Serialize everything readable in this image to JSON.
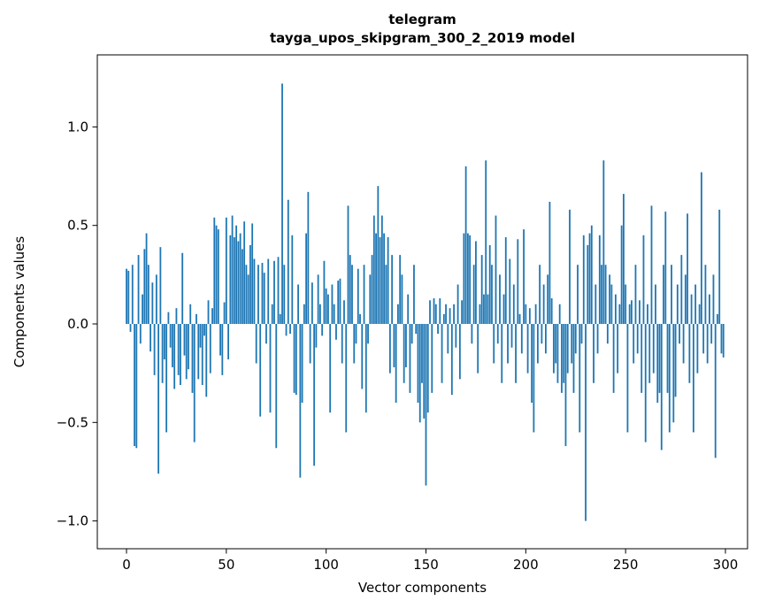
{
  "title": {
    "line1": "telegram",
    "line2": "tayga_upos_skipgram_300_2_2019 model"
  },
  "chart_data": {
    "type": "bar",
    "title": "telegram\ntayga_upos_skipgram_300_2_2019 model",
    "xlabel": "Vector components",
    "ylabel": "Components values",
    "bar_color": "#1f77b4",
    "xlim": [
      -15,
      312
    ],
    "ylim": [
      -1.14,
      1.36
    ],
    "grid": false,
    "legend": "none",
    "xticks": [
      0,
      50,
      100,
      150,
      200,
      250,
      300
    ],
    "xtick_labels": [
      "0",
      "50",
      "100",
      "150",
      "200",
      "250",
      "300"
    ],
    "yticks": [
      1.0,
      0.5,
      0.0,
      -0.5,
      -1.0
    ],
    "ytick_labels": [
      "1.0",
      "0.5",
      "0.0",
      "−0.5",
      "−1.0"
    ],
    "x_start_index": 0,
    "values": [
      0.28,
      0.27,
      -0.04,
      0.3,
      -0.62,
      -0.63,
      0.35,
      -0.1,
      0.15,
      0.38,
      0.46,
      0.3,
      -0.14,
      0.21,
      -0.26,
      0.25,
      -0.76,
      0.39,
      -0.3,
      -0.18,
      -0.55,
      0.06,
      -0.12,
      -0.22,
      -0.33,
      0.08,
      -0.26,
      -0.31,
      0.36,
      -0.16,
      -0.28,
      -0.23,
      0.1,
      -0.35,
      -0.6,
      0.05,
      -0.28,
      -0.12,
      -0.31,
      -0.06,
      -0.37,
      0.12,
      -0.25,
      0.08,
      0.54,
      0.5,
      0.48,
      -0.16,
      -0.26,
      0.11,
      0.54,
      -0.18,
      0.45,
      0.55,
      0.44,
      0.5,
      0.42,
      0.46,
      0.38,
      0.52,
      0.3,
      0.25,
      0.4,
      0.51,
      0.33,
      -0.2,
      0.3,
      -0.47,
      0.31,
      0.26,
      -0.1,
      0.33,
      -0.45,
      0.1,
      0.32,
      -0.63,
      0.34,
      0.05,
      1.22,
      0.3,
      -0.06,
      0.63,
      -0.05,
      0.45,
      -0.35,
      -0.36,
      0.2,
      -0.78,
      -0.4,
      0.1,
      0.46,
      0.67,
      -0.2,
      0.21,
      -0.72,
      -0.12,
      0.25,
      0.1,
      -0.06,
      0.32,
      0.18,
      0.15,
      -0.45,
      0.2,
      0.1,
      -0.08,
      0.22,
      0.23,
      -0.2,
      0.12,
      -0.55,
      0.6,
      0.35,
      0.3,
      -0.2,
      -0.1,
      0.28,
      0.05,
      -0.33,
      0.3,
      -0.45,
      -0.1,
      0.25,
      0.35,
      0.55,
      0.46,
      0.7,
      0.44,
      0.55,
      0.46,
      0.3,
      0.44,
      -0.25,
      0.35,
      -0.22,
      -0.4,
      0.1,
      0.35,
      0.25,
      -0.3,
      -0.22,
      0.15,
      -0.35,
      -0.1,
      0.3,
      -0.05,
      -0.4,
      -0.5,
      -0.3,
      -0.48,
      -0.82,
      -0.45,
      0.12,
      -0.35,
      0.13,
      0.1,
      -0.05,
      0.13,
      -0.3,
      0.05,
      0.1,
      -0.15,
      0.08,
      -0.36,
      0.1,
      -0.12,
      0.2,
      -0.28,
      0.12,
      0.46,
      0.8,
      0.46,
      0.45,
      -0.1,
      0.3,
      0.42,
      -0.25,
      0.1,
      0.35,
      0.15,
      0.83,
      0.15,
      0.4,
      0.3,
      -0.2,
      0.55,
      -0.1,
      0.25,
      -0.3,
      0.15,
      0.44,
      -0.2,
      0.33,
      -0.12,
      0.2,
      -0.3,
      0.43,
      0.05,
      -0.15,
      0.48,
      0.1,
      -0.25,
      0.08,
      -0.4,
      -0.55,
      0.1,
      -0.2,
      0.3,
      -0.1,
      0.2,
      -0.15,
      0.25,
      0.62,
      0.13,
      -0.25,
      -0.2,
      -0.3,
      0.1,
      -0.35,
      -0.3,
      -0.62,
      -0.25,
      0.58,
      -0.2,
      -0.35,
      -0.15,
      0.3,
      -0.55,
      -0.1,
      0.45,
      -1.0,
      0.4,
      0.46,
      0.5,
      -0.3,
      0.2,
      -0.15,
      0.45,
      0.3,
      0.83,
      0.3,
      -0.1,
      0.25,
      0.2,
      -0.35,
      0.15,
      -0.25,
      0.1,
      0.5,
      0.66,
      0.2,
      -0.55,
      0.1,
      0.12,
      -0.2,
      0.3,
      -0.15,
      0.12,
      -0.35,
      0.45,
      -0.6,
      0.1,
      -0.3,
      0.6,
      -0.25,
      0.2,
      -0.4,
      -0.35,
      -0.64,
      0.3,
      0.57,
      -0.35,
      -0.55,
      0.3,
      -0.5,
      -0.37,
      0.2,
      -0.1,
      0.35,
      -0.2,
      0.25,
      0.56,
      -0.3,
      0.15,
      -0.55,
      0.2,
      -0.25,
      0.1,
      0.77,
      -0.15,
      0.3,
      -0.2,
      0.15,
      -0.1,
      0.25,
      -0.68,
      0.05,
      0.58,
      -0.15,
      -0.17
    ]
  }
}
